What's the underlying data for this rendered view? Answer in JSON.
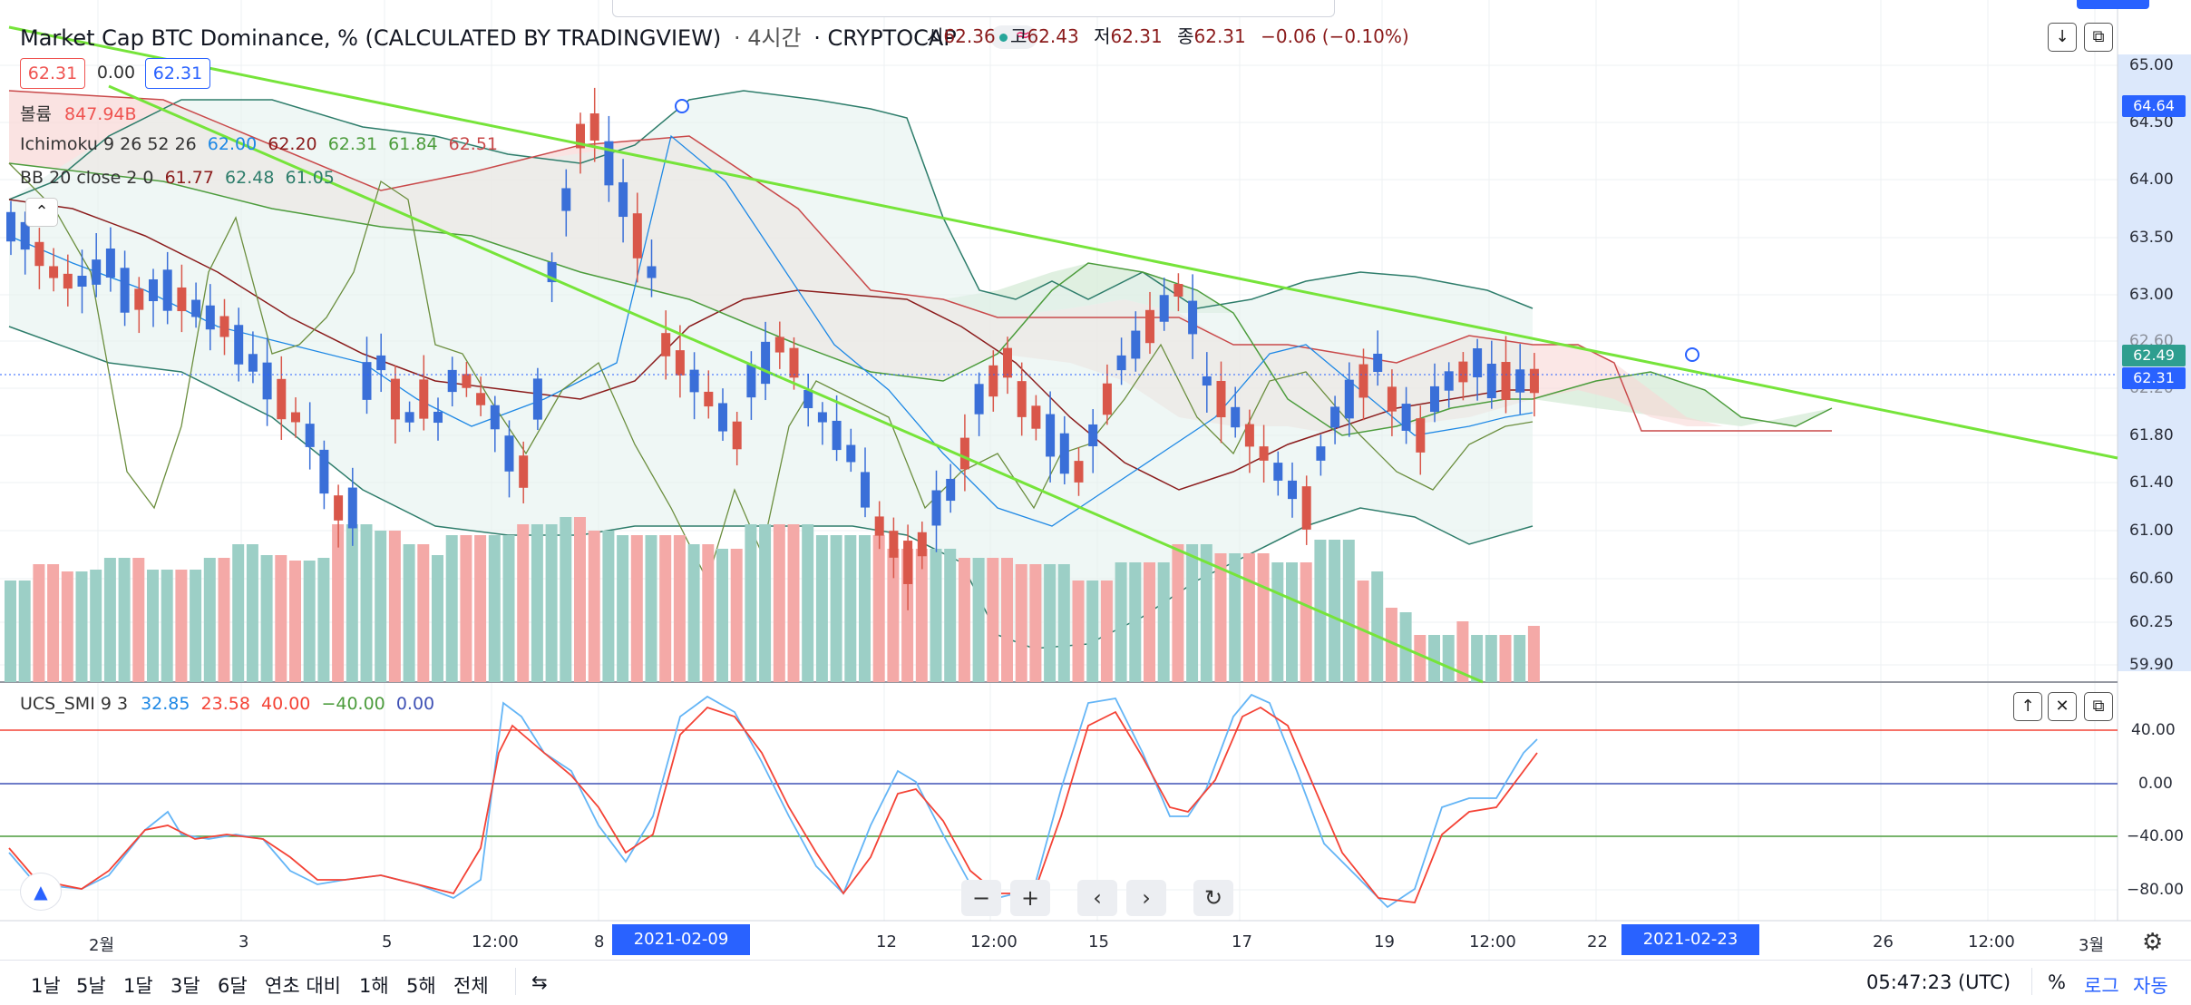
{
  "header": {
    "title": "Market Cap BTC Dominance, % (CALCULATED BY TRADINGVIEW)",
    "interval": "· 4시간",
    "exchange": "· CRYPTOCAP",
    "ohlc": {
      "open_label": "시",
      "open": "62.36",
      "high_label": "고",
      "high": "62.43",
      "low_label": "저",
      "low": "62.31",
      "close_label": "종",
      "close": "62.31",
      "change": "−0.06 (−0.10%)"
    }
  },
  "badges": {
    "bid": "62.31",
    "spread": "0.00",
    "ask": "62.31"
  },
  "legends": {
    "volume_name": "볼륨",
    "volume_value": "847.94B",
    "ichimoku_name": "Ichimoku 9 26 52 26",
    "ichimoku_values": [
      "62.00",
      "62.20",
      "62.31",
      "61.84",
      "62.51"
    ],
    "bb_name": "BB 20 close 2 0",
    "bb_values": [
      "61.77",
      "62.48",
      "61.05"
    ],
    "smi_name": "UCS_SMI 9 3",
    "smi_values": [
      "32.85",
      "23.58",
      "40.00",
      "−40.00",
      "0.00"
    ]
  },
  "price_axis": [
    "65.00",
    "64.50",
    "64.00",
    "63.50",
    "63.00",
    "62.60",
    "62.20",
    "61.80",
    "61.40",
    "61.00",
    "60.60",
    "60.25",
    "59.90"
  ],
  "price_boxes": {
    "line_high": "64.64",
    "bb_upper": "62.49",
    "last": "62.31"
  },
  "smi_axis": [
    "40.00",
    "0.00",
    "−40.00",
    "−80.00"
  ],
  "time_axis": [
    "2월",
    "3",
    "5",
    "12:00",
    "8",
    "12",
    "12:00",
    "15",
    "17",
    "19",
    "12:00",
    "22",
    "26",
    "12:00",
    "3월"
  ],
  "time_highlights": [
    "2021-02-09   04:00",
    "2021-02-23   08:00"
  ],
  "bottom_bar": {
    "ranges": [
      "1날",
      "5날",
      "1달",
      "3달",
      "6달",
      "연초 대비",
      "1해",
      "5해",
      "전체"
    ],
    "clock": "05:47:23 (UTC)",
    "percent": "%",
    "log": "로그",
    "auto": "자동"
  },
  "colors": {
    "up": "#ef5350",
    "down": "#2962ff",
    "trendline": "#76e43a",
    "smi_fast": "#64b5f6",
    "smi_slow": "#f44336"
  }
}
